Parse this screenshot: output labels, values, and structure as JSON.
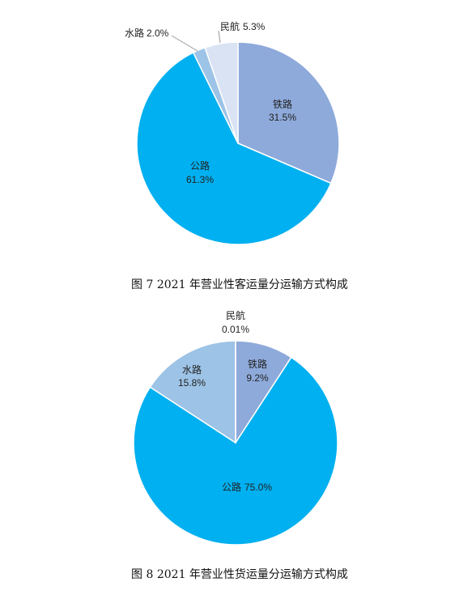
{
  "chart_data": [
    {
      "type": "pie",
      "caption": "图 7 2021 年营业性客运量分运输方式构成",
      "slices": [
        {
          "name": "铁路",
          "value": 31.5,
          "label": "31.5%",
          "color": "#8eaadb"
        },
        {
          "name": "公路",
          "value": 61.3,
          "label": "61.3%",
          "color": "#00b0f0"
        },
        {
          "name": "水路",
          "value": 2.0,
          "label": "2.0%",
          "color": "#9dc3e6"
        },
        {
          "name": "民航",
          "value": 5.3,
          "label": "5.3%",
          "color": "#dae3f3"
        }
      ]
    },
    {
      "type": "pie",
      "caption": "图 8 2021 年营业性货运量分运输方式构成",
      "slices": [
        {
          "name": "铁路",
          "value": 9.2,
          "label": "9.2%",
          "color": "#8eaadb"
        },
        {
          "name": "公路",
          "value": 75.0,
          "label": "75.0%",
          "color": "#00b0f0"
        },
        {
          "name": "水路",
          "value": 15.8,
          "label": "15.8%",
          "color": "#9dc3e6"
        },
        {
          "name": "民航",
          "value": 0.01,
          "label": "0.01%",
          "color": "#dae3f3"
        }
      ]
    }
  ]
}
